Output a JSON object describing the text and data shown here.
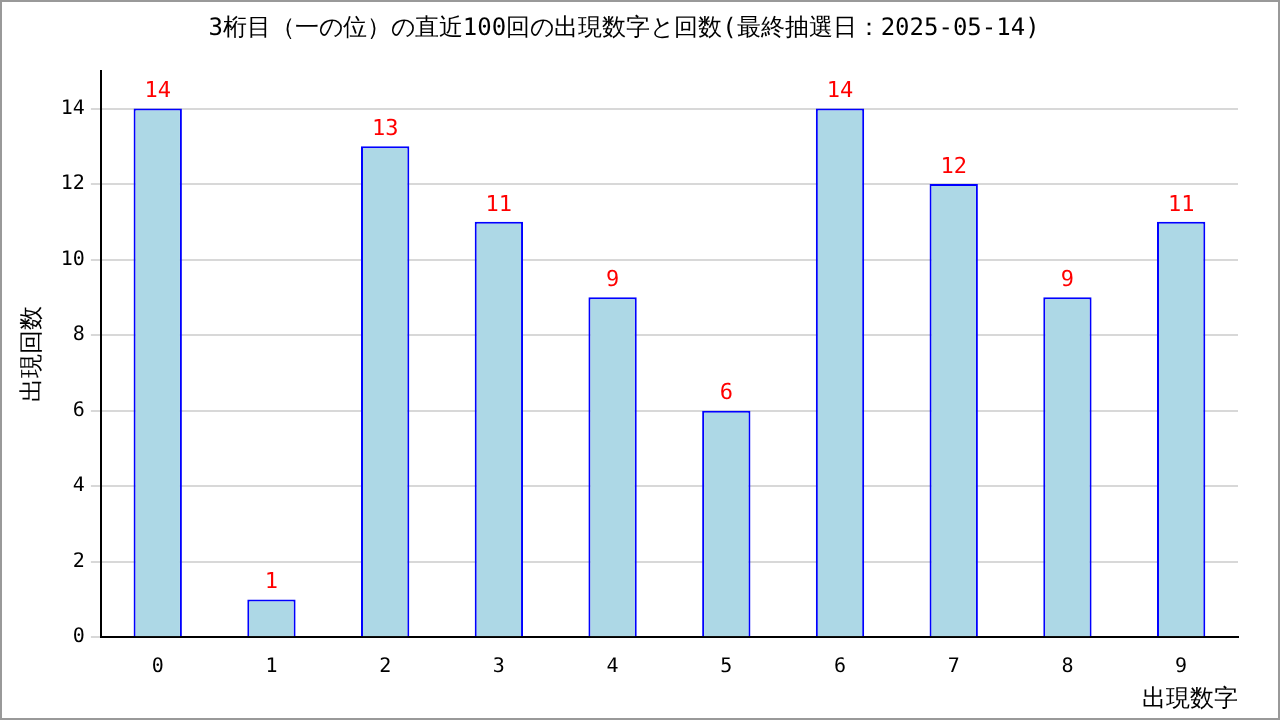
{
  "chart_data": {
    "type": "bar",
    "title": "3桁目（一の位）の直近100回の出現数字と回数(最終抽選日：2025-05-14)",
    "xlabel": "出現数字",
    "ylabel": "出現回数",
    "categories": [
      "0",
      "1",
      "2",
      "3",
      "4",
      "5",
      "6",
      "7",
      "8",
      "9"
    ],
    "values": [
      14,
      1,
      13,
      11,
      9,
      6,
      14,
      12,
      9,
      11
    ],
    "color": "#add8e6",
    "ylim": [
      0,
      15
    ],
    "yticks": [
      0,
      2,
      4,
      6,
      8,
      10,
      12,
      14
    ],
    "grid": "y",
    "data_labels": true,
    "legend": false
  }
}
